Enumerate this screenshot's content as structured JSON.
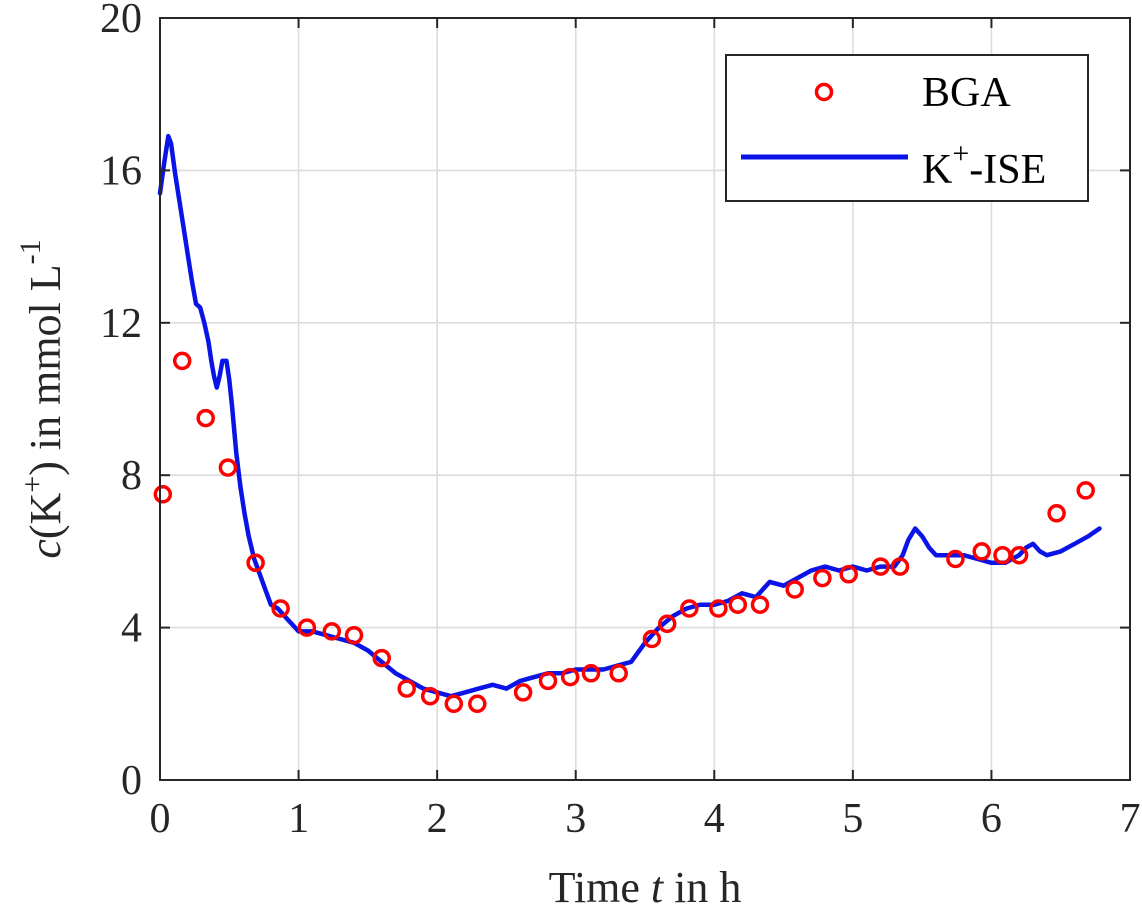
{
  "chart_data": {
    "type": "scatter+line",
    "xlabel_parts": {
      "prefix": "Time ",
      "var": "t",
      "suffix": " in h"
    },
    "ylabel_parts": {
      "var": "c",
      "open": "(K",
      "sup": "+",
      "close": ") in mmol L",
      "unit_sup": "-1"
    },
    "xlim": [
      0,
      7
    ],
    "ylim": [
      0,
      20
    ],
    "xticks": [
      0,
      1,
      2,
      3,
      4,
      5,
      6,
      7
    ],
    "yticks": [
      0,
      4,
      8,
      12,
      16,
      20
    ],
    "grid": true,
    "legend_position": "top-right",
    "legend": {
      "bga": "BGA",
      "ise_base": "K",
      "ise_sup": "+",
      "ise_suffix": "-ISE"
    },
    "colors": {
      "bga": "#ff0000",
      "ise": "#0a14e6"
    },
    "series": [
      {
        "name": "BGA",
        "type": "scatter",
        "points": [
          [
            0.02,
            7.5
          ],
          [
            0.16,
            11.0
          ],
          [
            0.33,
            9.5
          ],
          [
            0.49,
            8.2
          ],
          [
            0.69,
            5.7
          ],
          [
            0.87,
            4.5
          ],
          [
            1.06,
            4.0
          ],
          [
            1.24,
            3.9
          ],
          [
            1.4,
            3.8
          ],
          [
            1.6,
            3.2
          ],
          [
            1.78,
            2.4
          ],
          [
            1.95,
            2.2
          ],
          [
            2.12,
            2.0
          ],
          [
            2.29,
            2.0
          ],
          [
            2.62,
            2.3
          ],
          [
            2.8,
            2.6
          ],
          [
            2.96,
            2.7
          ],
          [
            3.11,
            2.8
          ],
          [
            3.31,
            2.8
          ],
          [
            3.55,
            3.7
          ],
          [
            3.66,
            4.1
          ],
          [
            3.82,
            4.5
          ],
          [
            4.03,
            4.5
          ],
          [
            4.17,
            4.6
          ],
          [
            4.33,
            4.6
          ],
          [
            4.58,
            5.0
          ],
          [
            4.78,
            5.3
          ],
          [
            4.97,
            5.4
          ],
          [
            5.2,
            5.6
          ],
          [
            5.34,
            5.6
          ],
          [
            5.74,
            5.8
          ],
          [
            5.93,
            6.0
          ],
          [
            6.08,
            5.9
          ],
          [
            6.2,
            5.9
          ],
          [
            6.47,
            7.0
          ],
          [
            6.68,
            7.6
          ]
        ]
      },
      {
        "name": "K+-ISE",
        "type": "line",
        "points": [
          [
            0.0,
            15.4
          ],
          [
            0.03,
            16.2
          ],
          [
            0.06,
            16.9
          ],
          [
            0.08,
            16.7
          ],
          [
            0.11,
            15.9
          ],
          [
            0.14,
            15.2
          ],
          [
            0.17,
            14.5
          ],
          [
            0.2,
            13.8
          ],
          [
            0.23,
            13.1
          ],
          [
            0.26,
            12.5
          ],
          [
            0.29,
            12.4
          ],
          [
            0.32,
            12.0
          ],
          [
            0.35,
            11.5
          ],
          [
            0.37,
            11.0
          ],
          [
            0.39,
            10.6
          ],
          [
            0.41,
            10.3
          ],
          [
            0.43,
            10.6
          ],
          [
            0.45,
            11.0
          ],
          [
            0.48,
            11.0
          ],
          [
            0.5,
            10.5
          ],
          [
            0.52,
            9.8
          ],
          [
            0.55,
            8.6
          ],
          [
            0.58,
            7.7
          ],
          [
            0.61,
            7.0
          ],
          [
            0.64,
            6.4
          ],
          [
            0.68,
            5.8
          ],
          [
            0.72,
            5.4
          ],
          [
            0.76,
            5.0
          ],
          [
            0.8,
            4.6
          ],
          [
            0.85,
            4.5
          ],
          [
            0.9,
            4.3
          ],
          [
            0.95,
            4.1
          ],
          [
            1.0,
            3.9
          ],
          [
            1.1,
            3.9
          ],
          [
            1.2,
            3.8
          ],
          [
            1.3,
            3.7
          ],
          [
            1.4,
            3.6
          ],
          [
            1.5,
            3.4
          ],
          [
            1.6,
            3.1
          ],
          [
            1.7,
            2.8
          ],
          [
            1.8,
            2.6
          ],
          [
            1.9,
            2.4
          ],
          [
            2.0,
            2.3
          ],
          [
            2.1,
            2.2
          ],
          [
            2.2,
            2.3
          ],
          [
            2.3,
            2.4
          ],
          [
            2.4,
            2.5
          ],
          [
            2.5,
            2.4
          ],
          [
            2.6,
            2.6
          ],
          [
            2.7,
            2.7
          ],
          [
            2.8,
            2.8
          ],
          [
            2.9,
            2.8
          ],
          [
            3.0,
            2.9
          ],
          [
            3.1,
            2.9
          ],
          [
            3.2,
            2.9
          ],
          [
            3.3,
            3.0
          ],
          [
            3.4,
            3.1
          ],
          [
            3.5,
            3.6
          ],
          [
            3.6,
            4.0
          ],
          [
            3.7,
            4.3
          ],
          [
            3.8,
            4.5
          ],
          [
            3.9,
            4.6
          ],
          [
            4.0,
            4.6
          ],
          [
            4.1,
            4.7
          ],
          [
            4.2,
            4.9
          ],
          [
            4.3,
            4.8
          ],
          [
            4.4,
            5.2
          ],
          [
            4.5,
            5.1
          ],
          [
            4.6,
            5.3
          ],
          [
            4.7,
            5.5
          ],
          [
            4.8,
            5.6
          ],
          [
            4.9,
            5.5
          ],
          [
            5.0,
            5.6
          ],
          [
            5.1,
            5.5
          ],
          [
            5.2,
            5.6
          ],
          [
            5.3,
            5.6
          ],
          [
            5.36,
            5.9
          ],
          [
            5.4,
            6.3
          ],
          [
            5.45,
            6.6
          ],
          [
            5.5,
            6.4
          ],
          [
            5.55,
            6.1
          ],
          [
            5.6,
            5.9
          ],
          [
            5.7,
            5.9
          ],
          [
            5.8,
            5.9
          ],
          [
            5.9,
            5.8
          ],
          [
            6.0,
            5.7
          ],
          [
            6.1,
            5.7
          ],
          [
            6.2,
            5.9
          ],
          [
            6.25,
            6.1
          ],
          [
            6.3,
            6.2
          ],
          [
            6.35,
            6.0
          ],
          [
            6.4,
            5.9
          ],
          [
            6.5,
            6.0
          ],
          [
            6.6,
            6.2
          ],
          [
            6.7,
            6.4
          ],
          [
            6.78,
            6.6
          ]
        ]
      }
    ]
  }
}
